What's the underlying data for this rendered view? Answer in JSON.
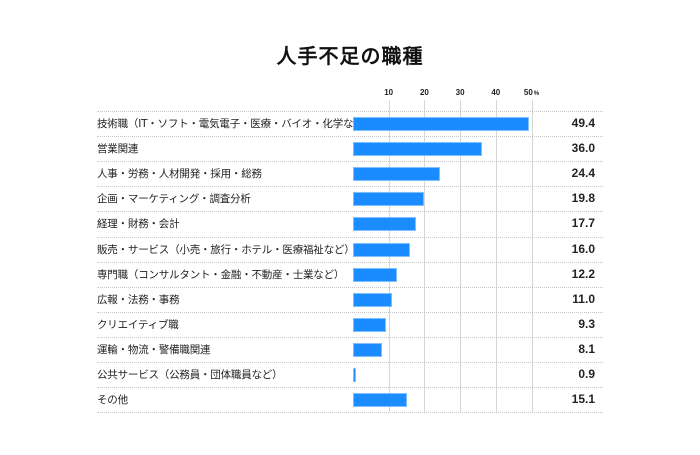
{
  "title": "人手不足の職種",
  "axis": {
    "ticks": [
      {
        "label": "10",
        "value": 10
      },
      {
        "label": "20",
        "value": 20
      },
      {
        "label": "30",
        "value": 30
      },
      {
        "label": "40",
        "value": 40
      },
      {
        "label": "50",
        "value": 50
      }
    ],
    "unit": "%"
  },
  "colors": {
    "bar": "#1a8cff",
    "gridline": "#d6d6d6"
  },
  "rows": [
    {
      "label": "技術職（IT・ソフト・電気電子・医療・バイオ・化学など）",
      "value": "49.4"
    },
    {
      "label": "営業関連",
      "value": "36.0"
    },
    {
      "label": "人事・労務・人材開発・採用・総務",
      "value": "24.4"
    },
    {
      "label": "企画・マーケティング・調査分析",
      "value": "19.8"
    },
    {
      "label": "経理・財務・会計",
      "value": "17.7"
    },
    {
      "label": "販売・サービス（小売・旅行・ホテル・医療福祉など）",
      "value": "16.0"
    },
    {
      "label": "専門職（コンサルタント・金融・不動産・士業など）",
      "value": "12.2"
    },
    {
      "label": "広報・法務・事務",
      "value": "11.0"
    },
    {
      "label": "クリエイティブ職",
      "value": "9.3"
    },
    {
      "label": "運輸・物流・警備職関連",
      "value": "8.1"
    },
    {
      "label": "公共サービス（公務員・団体職員など）",
      "value": "0.9"
    },
    {
      "label": "その他",
      "value": "15.1"
    }
  ],
  "chart_data": {
    "type": "bar",
    "orientation": "horizontal",
    "title": "人手不足の職種",
    "xlabel": "",
    "ylabel": "",
    "unit": "%",
    "xlim": [
      0,
      50
    ],
    "xticks": [
      10,
      20,
      30,
      40,
      50
    ],
    "grid": true,
    "categories": [
      "技術職（IT・ソフト・電気電子・医療・バイオ・化学など）",
      "営業関連",
      "人事・労務・人材開発・採用・総務",
      "企画・マーケティング・調査分析",
      "経理・財務・会計",
      "販売・サービス（小売・旅行・ホテル・医療福祉など）",
      "専門職（コンサルタント・金融・不動産・士業など）",
      "広報・法務・事務",
      "クリエイティブ職",
      "運輸・物流・警備職関連",
      "公共サービス（公務員・団体職員など）",
      "その他"
    ],
    "values": [
      49.4,
      36.0,
      24.4,
      19.8,
      17.7,
      16.0,
      12.2,
      11.0,
      9.3,
      8.1,
      0.9,
      15.1
    ]
  }
}
